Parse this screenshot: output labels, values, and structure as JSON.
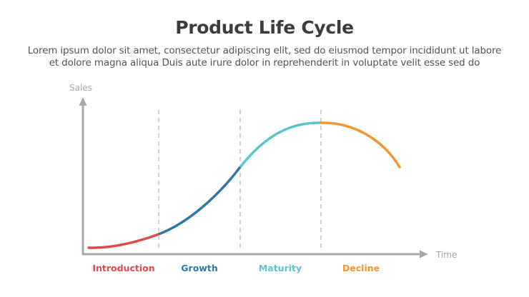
{
  "header": {
    "title": "Product Life Cycle",
    "description_line1": "Lorem ipsum dolor sit amet, consectetur adipiscing elit, sed do eiusmod tempor incididunt ut labore",
    "description_line2": "et dolore magna aliqua Duis aute irure dolor in reprehenderit in voluptate velit esse sed do"
  },
  "axes": {
    "y_label": "Sales",
    "x_label": "Time",
    "color": "#a8a8a8"
  },
  "divider_color": "#c4c4c4",
  "stages": [
    {
      "label": "Introduction",
      "color": "#e04a4d"
    },
    {
      "label": "Growth",
      "color": "#2e78a8"
    },
    {
      "label": "Maturity",
      "color": "#5bc2cf"
    },
    {
      "label": "Decline",
      "color": "#f2952f"
    }
  ]
}
